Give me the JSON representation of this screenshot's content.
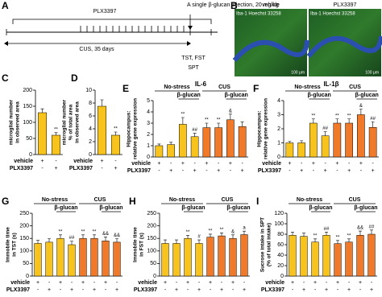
{
  "panels": {
    "a": {
      "letter": "A",
      "plx": "PLX3397",
      "cus": "CUS, 35 days",
      "injection": "A single β-glucan injection, 20 mg/kg",
      "tests": "TST, FST",
      "spt": "SPT"
    },
    "b": {
      "letter": "B",
      "left": "vehicle",
      "right": "PLX3397",
      "stain_left": "Iba-1 Hoechst 33258",
      "stain_right": "Iba-1 Hoechst 33258",
      "scale_left": "100 μm",
      "scale_right": "100 μm"
    }
  },
  "chart_data": [
    {
      "type": "bar",
      "panel": "C",
      "ylabel": [
        "microglial number",
        "in observed area"
      ],
      "ylim": [
        0,
        200
      ],
      "yticks": [
        0,
        50,
        100,
        150,
        200
      ],
      "values": [
        130,
        60
      ],
      "errors": [
        12,
        8
      ],
      "colors": [
        "#f7c31c",
        "#f7c31c"
      ],
      "sig_labels": [
        null,
        "**"
      ],
      "conditions": [
        {
          "name": "vehicle",
          "signs": [
            "+",
            "-"
          ]
        },
        {
          "name": "PLX3397",
          "signs": [
            "-",
            "+"
          ]
        }
      ]
    },
    {
      "type": "bar",
      "panel": "D",
      "ylabel": [
        "microglial number",
        "% of total area",
        "in observed area"
      ],
      "ylim": [
        0,
        10
      ],
      "yticks": [
        0,
        2,
        4,
        6,
        8,
        10
      ],
      "values": [
        7.5,
        3
      ],
      "errors": [
        1,
        0.5
      ],
      "colors": [
        "#f7c31c",
        "#f7c31c"
      ],
      "sig_labels": [
        null,
        "**"
      ],
      "conditions": [
        {
          "name": "vehicle",
          "signs": [
            "+",
            "-"
          ]
        },
        {
          "name": "PLX3397",
          "signs": [
            "-",
            "+"
          ]
        }
      ]
    },
    {
      "type": "bar",
      "panel": "E",
      "title": "IL-6",
      "ylabel": [
        "Hippocampus:",
        "relative gene expression"
      ],
      "ylim": [
        0,
        5
      ],
      "yticks": [
        0,
        1,
        2,
        3,
        4,
        5
      ],
      "groups": [
        "No-stress",
        "CUS"
      ],
      "subgroup": "β-glucan",
      "values": [
        1.0,
        1.1,
        2.9,
        1.8,
        2.6,
        2.6,
        3.3,
        2.7
      ],
      "errors": [
        0.15,
        0.2,
        0.6,
        0.3,
        0.4,
        0.4,
        0.5,
        0.4
      ],
      "colors": [
        "#f7c31c",
        "#f7c31c",
        "#f7c31c",
        "#f7c31c",
        "#f07a2a",
        "#f07a2a",
        "#f07a2a",
        "#f07a2a"
      ],
      "sig_labels": [
        null,
        null,
        "**",
        "##",
        "**",
        "**",
        "&",
        null
      ],
      "conditions": [
        {
          "name": "vehicle",
          "signs": [
            "+",
            "-",
            "+",
            "-",
            "+",
            "-",
            "+",
            "-"
          ]
        },
        {
          "name": "PLX3397",
          "signs": [
            "-",
            "+",
            "-",
            "+",
            "-",
            "+",
            "-",
            "+"
          ]
        }
      ]
    },
    {
      "type": "bar",
      "panel": "F",
      "title": "IL-1β",
      "ylabel": [
        "Hippocampus:",
        "relative gene expression"
      ],
      "ylim": [
        0,
        4
      ],
      "yticks": [
        0,
        1,
        2,
        3,
        4
      ],
      "groups": [
        "No-stress",
        "CUS"
      ],
      "subgroup": "β-glucan",
      "values": [
        1.0,
        1.0,
        2.4,
        1.5,
        2.4,
        2.4,
        3.0,
        2.1
      ],
      "errors": [
        0.1,
        0.15,
        0.3,
        0.3,
        0.3,
        0.3,
        0.4,
        0.4
      ],
      "colors": [
        "#f7c31c",
        "#f7c31c",
        "#f7c31c",
        "#f7c31c",
        "#f07a2a",
        "#f07a2a",
        "#f07a2a",
        "#f07a2a"
      ],
      "sig_labels": [
        null,
        null,
        "**",
        "##",
        "**",
        "**",
        "&",
        "##"
      ],
      "conditions": [
        {
          "name": "vehicle",
          "signs": [
            "+",
            "-",
            "+",
            "-",
            "+",
            "-",
            "+",
            "-"
          ]
        },
        {
          "name": "PLX3397",
          "signs": [
            "-",
            "+",
            "-",
            "+",
            "-",
            "+",
            "-",
            "+"
          ]
        }
      ]
    },
    {
      "type": "bar",
      "panel": "G",
      "ylabel": [
        "Immobile time",
        "in TST (s)"
      ],
      "ylim": [
        0,
        250
      ],
      "yticks": [
        0,
        50,
        100,
        150,
        200,
        250
      ],
      "groups": [
        "No-stress",
        "CUS"
      ],
      "subgroup": "β-glucan",
      "values": [
        130,
        135,
        150,
        125,
        150,
        150,
        140,
        135
      ],
      "errors": [
        12,
        14,
        14,
        14,
        14,
        14,
        16,
        14
      ],
      "colors": [
        "#f7c31c",
        "#f7c31c",
        "#f7c31c",
        "#f7c31c",
        "#f07a2a",
        "#f07a2a",
        "#f07a2a",
        "#f07a2a"
      ],
      "sig_labels": [
        null,
        null,
        "**",
        "##",
        "**",
        "**",
        "&&",
        "&&"
      ],
      "conditions": [
        {
          "name": "vehicle",
          "signs": [
            "+",
            "-",
            "+",
            "-",
            "+",
            "-",
            "+",
            "-"
          ]
        },
        {
          "name": "PLX3397",
          "signs": [
            "-",
            "+",
            "-",
            "+",
            "-",
            "+",
            "-",
            "+"
          ]
        }
      ]
    },
    {
      "type": "bar",
      "panel": "H",
      "ylabel": [
        "Immobile time",
        "in FST (s)"
      ],
      "ylim": [
        0,
        250
      ],
      "yticks": [
        0,
        50,
        100,
        150,
        200,
        250
      ],
      "groups": [
        "No-stress",
        "CUS"
      ],
      "subgroup": "β-glucan",
      "values": [
        130,
        130,
        150,
        130,
        155,
        160,
        150,
        165
      ],
      "errors": [
        14,
        14,
        12,
        14,
        12,
        12,
        14,
        14
      ],
      "colors": [
        "#f7c31c",
        "#f7c31c",
        "#f7c31c",
        "#f7c31c",
        "#f07a2a",
        "#f07a2a",
        "#f07a2a",
        "#f07a2a"
      ],
      "sig_labels": [
        null,
        null,
        "**",
        "#",
        "**",
        "**",
        "&",
        "a"
      ],
      "conditions": [
        {
          "name": "vehicle",
          "signs": [
            "+",
            "-",
            "+",
            "-",
            "+",
            "-",
            "+",
            "-"
          ]
        },
        {
          "name": "PLX3397",
          "signs": [
            "-",
            "+",
            "-",
            "+",
            "-",
            "+",
            "-",
            "+"
          ]
        }
      ]
    },
    {
      "type": "bar",
      "panel": "I",
      "ylabel": [
        "Sucrose intake in SPT",
        "(% of total intake)"
      ],
      "ylim": [
        0,
        120
      ],
      "yticks": [
        0,
        20,
        40,
        60,
        80,
        100,
        120
      ],
      "groups": [
        "No-stress",
        "CUS"
      ],
      "subgroup": "β-glucan",
      "values": [
        78,
        76,
        65,
        78,
        62,
        65,
        78,
        80
      ],
      "errors": [
        6,
        6,
        6,
        6,
        6,
        6,
        8,
        8
      ],
      "colors": [
        "#f7c31c",
        "#f7c31c",
        "#f7c31c",
        "#f7c31c",
        "#f07a2a",
        "#f07a2a",
        "#f07a2a",
        "#f07a2a"
      ],
      "sig_labels": [
        null,
        null,
        "**",
        "##",
        "**",
        "**",
        "&&",
        "##"
      ],
      "conditions": [
        {
          "name": "vehicle",
          "signs": [
            "+",
            "-",
            "+",
            "-",
            "+",
            "-",
            "+",
            "-"
          ]
        },
        {
          "name": "PLX3397",
          "signs": [
            "-",
            "+",
            "-",
            "+",
            "-",
            "+",
            "-",
            "+"
          ]
        }
      ]
    }
  ]
}
